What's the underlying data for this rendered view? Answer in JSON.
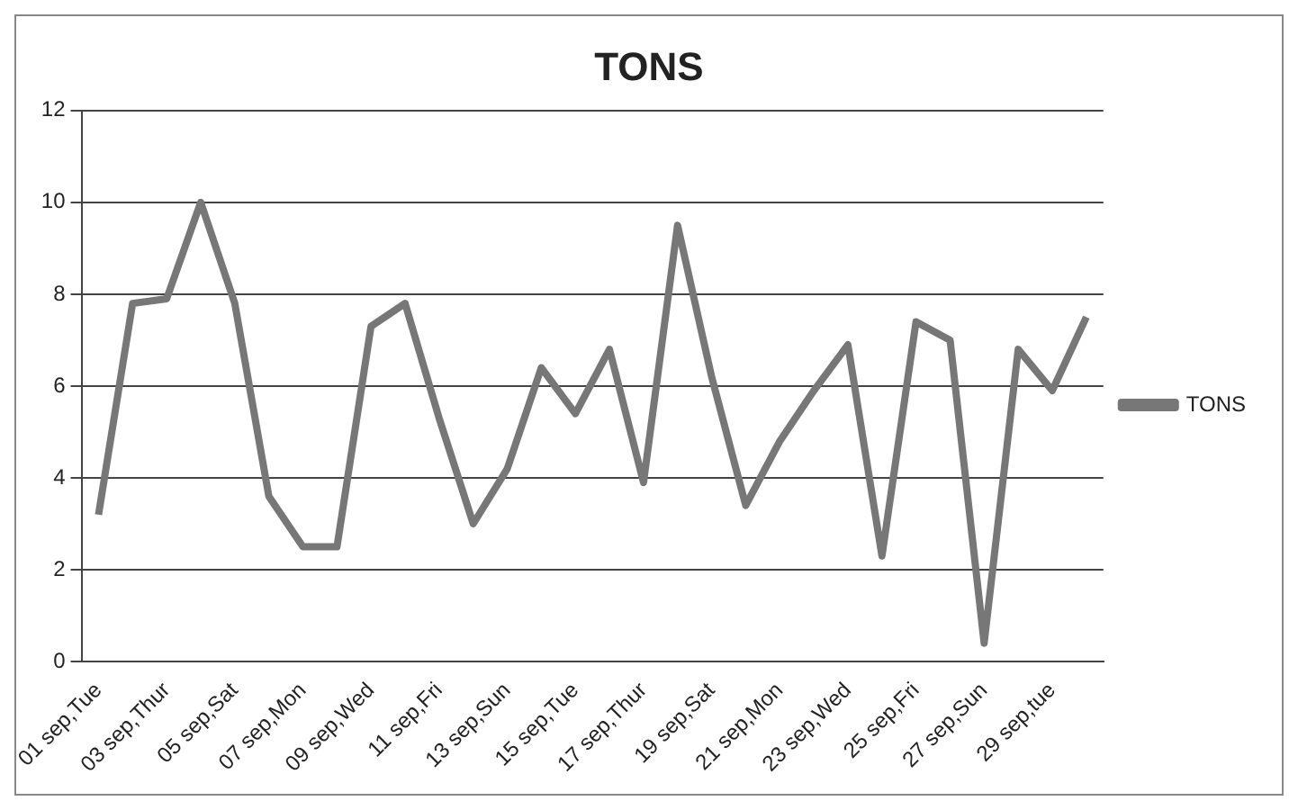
{
  "chart_data": {
    "type": "line",
    "title": "TONS",
    "categories": [
      "01 sep,Tue",
      null,
      "03 sep,Thur",
      null,
      "05 sep,Sat",
      null,
      "07 sep,Mon",
      null,
      "09 sep,Wed",
      null,
      "11 sep,Fri",
      null,
      "13 sep,Sun",
      null,
      "15 sep,Tue",
      null,
      "17 sep,Thur",
      null,
      "19 sep,Sat",
      null,
      "21 sep,Mon",
      null,
      "23 sep,Wed",
      null,
      "25 sep,Fri",
      null,
      "27 sep,Sun",
      null,
      "29 sep,tue",
      null
    ],
    "series": [
      {
        "name": "TONS",
        "color": "#777777",
        "values": [
          3.2,
          7.8,
          7.9,
          10.0,
          7.8,
          3.6,
          2.5,
          2.5,
          7.3,
          7.8,
          5.3,
          3.0,
          4.2,
          6.4,
          5.4,
          6.8,
          3.9,
          9.5,
          6.2,
          3.4,
          4.8,
          5.9,
          6.9,
          2.3,
          7.4,
          7.0,
          0.4,
          6.8,
          5.9,
          7.5
        ]
      }
    ],
    "ylim": [
      0,
      12
    ],
    "yticks": [
      0,
      2,
      4,
      6,
      8,
      10,
      12
    ],
    "grid": "y",
    "legend": "right",
    "marker": "none",
    "line_style": "solid"
  }
}
